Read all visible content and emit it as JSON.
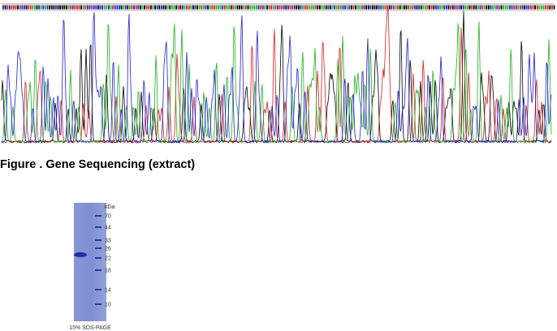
{
  "figure": {
    "caption": "Figure . Gene Sequencing (extract)"
  },
  "gel": {
    "unit": "kDa",
    "markers": [
      "70",
      "44",
      "33",
      "26",
      "22",
      "18",
      "14",
      "10"
    ],
    "label": "15% SDS-PAGE"
  }
}
